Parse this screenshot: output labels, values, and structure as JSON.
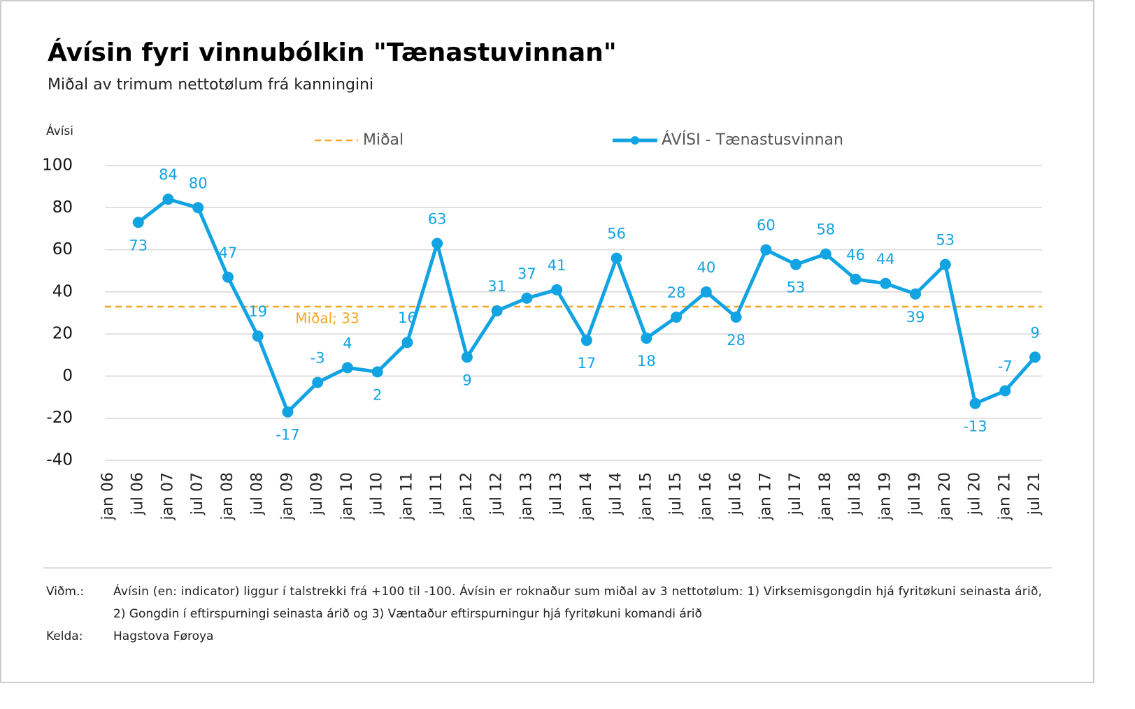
{
  "chart_data": {
    "type": "line",
    "title": "Ávísin fyri vinnubólkin \"Tænastuvinnan\"",
    "subtitle": "Miðal av trimum nettotølum frá kanningini",
    "y_axis_label": "Ávísi",
    "categories": [
      "jan 06",
      "jul 06",
      "jan 07",
      "jul 07",
      "jan 08",
      "jul 08",
      "jan 09",
      "jul 09",
      "jan 10",
      "jul 10",
      "jan 11",
      "jul 11",
      "jan 12",
      "jul 12",
      "jan 13",
      "jul 13",
      "jan 14",
      "jul 14",
      "jan 15",
      "jul 15",
      "jan 16",
      "jul 16",
      "jan 17",
      "jul 17",
      "jan 18",
      "jul 18",
      "jan 19",
      "jul 19",
      "jan 20",
      "jul 20",
      "jan 21",
      "jul 21"
    ],
    "series": [
      {
        "name": "ÁVÍSI - Tænastusvinnan",
        "color": "#12a3e3",
        "values": [
          null,
          73,
          84,
          80,
          47,
          19,
          -17,
          -3,
          4,
          2,
          16,
          63,
          9,
          31,
          37,
          41,
          17,
          56,
          18,
          28,
          40,
          28,
          60,
          53,
          58,
          46,
          44,
          39,
          53,
          -13,
          -7,
          9
        ]
      }
    ],
    "mean": {
      "name": "Miðal",
      "value": 33,
      "label": "Miðal; 33",
      "color": "#f5a623"
    },
    "ylim": [
      -40,
      100
    ],
    "yticks": [
      -40,
      -20,
      0,
      20,
      40,
      60,
      80,
      100
    ],
    "grid": true,
    "notes": [
      {
        "label": "Viðm.:",
        "lines": [
          "Ávísin (en: indicator) liggur í talstrekki frá +100 til -100. Ávísin er roknaður sum miðal av 3 nettotølum: 1) Virksemisgongdin hjá fyritøkuni seinasta árið,",
          "2) Gongdin í eftirspurningi seinasta árið og 3) Væntaður eftirspurningur hjá fyritøkuni komandi árið"
        ]
      },
      {
        "label": "Kelda:",
        "lines": [
          "Hagstova Føroya"
        ]
      }
    ]
  }
}
